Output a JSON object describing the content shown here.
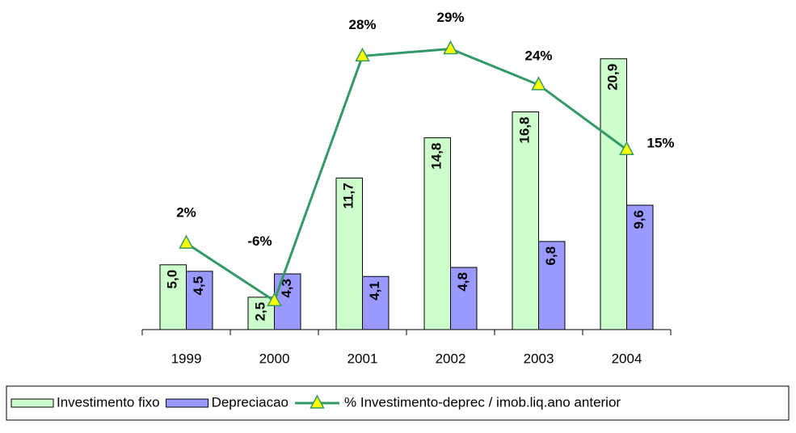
{
  "chart_data": {
    "type": "bar+line",
    "categories": [
      "1999",
      "2000",
      "2001",
      "2002",
      "2003",
      "2004"
    ],
    "ylim": [
      0,
      25
    ],
    "y2lim": [
      -10,
      35
    ],
    "series": [
      {
        "name": "Investimento fixo",
        "type": "bar",
        "color": "#ccffcc",
        "values": [
          5.0,
          2.5,
          11.7,
          14.8,
          16.8,
          20.9
        ],
        "value_labels": [
          "5,0",
          "2,5",
          "11,7",
          "14,8",
          "16,8",
          "20,9"
        ]
      },
      {
        "name": "Depreciacao",
        "type": "bar",
        "color": "#9999ff",
        "values": [
          4.5,
          4.3,
          4.1,
          4.8,
          6.8,
          9.6
        ],
        "value_labels": [
          "4,5",
          "4,3",
          "4,1",
          "4,8",
          "6,8",
          "9,6"
        ]
      },
      {
        "name": "% Investimento-deprec / imob.liq.ano anterior",
        "type": "line",
        "axis": "y2",
        "color": "#339966",
        "marker_color": "#ffff00",
        "values": [
          2,
          -6,
          28,
          29,
          24,
          15
        ],
        "value_labels": [
          "2%",
          "-6%",
          "28%",
          "29%",
          "24%",
          "15%"
        ]
      }
    ]
  }
}
